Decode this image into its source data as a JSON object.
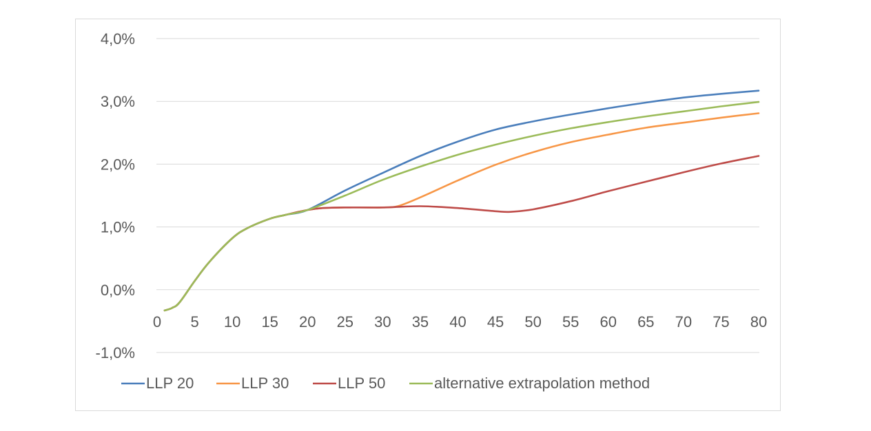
{
  "chart_data": {
    "type": "line",
    "title": "",
    "xlabel": "",
    "ylabel": "",
    "xlim": [
      0,
      80
    ],
    "ylim": [
      -1.0,
      4.0
    ],
    "x_ticks": [
      "0",
      "5",
      "10",
      "15",
      "20",
      "25",
      "30",
      "35",
      "40",
      "45",
      "50",
      "55",
      "60",
      "65",
      "70",
      "75",
      "80"
    ],
    "y_ticks": [
      "4,0%",
      "3,0%",
      "2,0%",
      "1,0%",
      "0,0%",
      "-1,0%"
    ],
    "grid": "horizontal",
    "legend_position": "bottom",
    "series": [
      {
        "name": "LLP 20",
        "color": "#4a7ebb",
        "x": [
          1,
          2,
          3,
          5,
          7,
          10,
          12,
          15,
          17,
          20,
          25,
          30,
          35,
          40,
          45,
          50,
          55,
          60,
          65,
          70,
          75,
          80
        ],
        "y": [
          -0.33,
          -0.29,
          -0.2,
          0.14,
          0.45,
          0.82,
          0.98,
          1.13,
          1.19,
          1.27,
          1.58,
          1.86,
          2.13,
          2.36,
          2.55,
          2.68,
          2.79,
          2.89,
          2.98,
          3.06,
          3.12,
          3.17
        ]
      },
      {
        "name": "LLP 30",
        "color": "#f79646",
        "x": [
          1,
          2,
          3,
          5,
          7,
          10,
          12,
          15,
          17,
          20,
          22,
          25,
          28,
          30,
          32,
          35,
          40,
          45,
          50,
          55,
          60,
          65,
          70,
          75,
          80
        ],
        "y": [
          -0.33,
          -0.29,
          -0.2,
          0.14,
          0.45,
          0.82,
          0.98,
          1.13,
          1.19,
          1.27,
          1.3,
          1.31,
          1.31,
          1.31,
          1.33,
          1.47,
          1.74,
          1.99,
          2.19,
          2.35,
          2.47,
          2.58,
          2.66,
          2.74,
          2.81
        ]
      },
      {
        "name": "LLP 50",
        "color": "#be4b48",
        "x": [
          1,
          2,
          3,
          5,
          7,
          10,
          12,
          15,
          17,
          20,
          22,
          25,
          30,
          35,
          40,
          45,
          47,
          50,
          55,
          60,
          65,
          70,
          75,
          80
        ],
        "y": [
          -0.33,
          -0.29,
          -0.2,
          0.14,
          0.45,
          0.82,
          0.98,
          1.13,
          1.19,
          1.27,
          1.3,
          1.31,
          1.31,
          1.33,
          1.3,
          1.25,
          1.24,
          1.28,
          1.41,
          1.57,
          1.72,
          1.87,
          2.01,
          2.13
        ]
      },
      {
        "name": "alternative extrapolation method",
        "color": "#9bbb59",
        "x": [
          1,
          2,
          3,
          5,
          7,
          10,
          12,
          15,
          17,
          20,
          25,
          30,
          35,
          40,
          45,
          50,
          55,
          60,
          65,
          70,
          75,
          80
        ],
        "y": [
          -0.33,
          -0.29,
          -0.2,
          0.14,
          0.45,
          0.82,
          0.98,
          1.13,
          1.19,
          1.27,
          1.5,
          1.75,
          1.96,
          2.15,
          2.31,
          2.45,
          2.57,
          2.67,
          2.76,
          2.84,
          2.92,
          2.99
        ]
      }
    ]
  }
}
